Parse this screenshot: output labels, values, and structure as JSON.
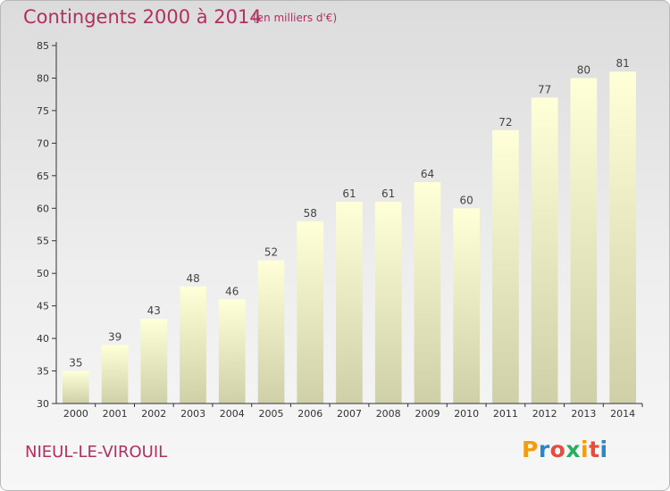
{
  "header": {
    "title": "Contingents 2000 à 2014",
    "subtitle": "(en milliers d'€)"
  },
  "footer": {
    "place": "NIEUL-LE-VIROUIL",
    "logo_letters": [
      "P",
      "r",
      "o",
      "x",
      "i",
      "t",
      "i"
    ],
    "logo_colors": [
      "#f39c12",
      "#2e86c1",
      "#e74c3c",
      "#27ae60",
      "#f39c12",
      "#e74c3c",
      "#2e86c1"
    ]
  },
  "chart_data": {
    "type": "bar",
    "title": "Contingents 2000 à 2014",
    "subtitle": "(en milliers d'€)",
    "categories": [
      "2000",
      "2001",
      "2002",
      "2003",
      "2004",
      "2005",
      "2006",
      "2007",
      "2008",
      "2009",
      "2010",
      "2011",
      "2012",
      "2013",
      "2014"
    ],
    "values": [
      35,
      39,
      43,
      48,
      46,
      52,
      58,
      61,
      61,
      64,
      60,
      72,
      77,
      80,
      81
    ],
    "ylim": [
      30,
      85
    ],
    "yticks": [
      30,
      35,
      40,
      45,
      50,
      55,
      60,
      65,
      70,
      75,
      80,
      85
    ],
    "grid": false,
    "colors": {
      "bar_top": "#ffffd8",
      "bar_bottom": "#d0d0a8",
      "axis": "#333333"
    }
  }
}
